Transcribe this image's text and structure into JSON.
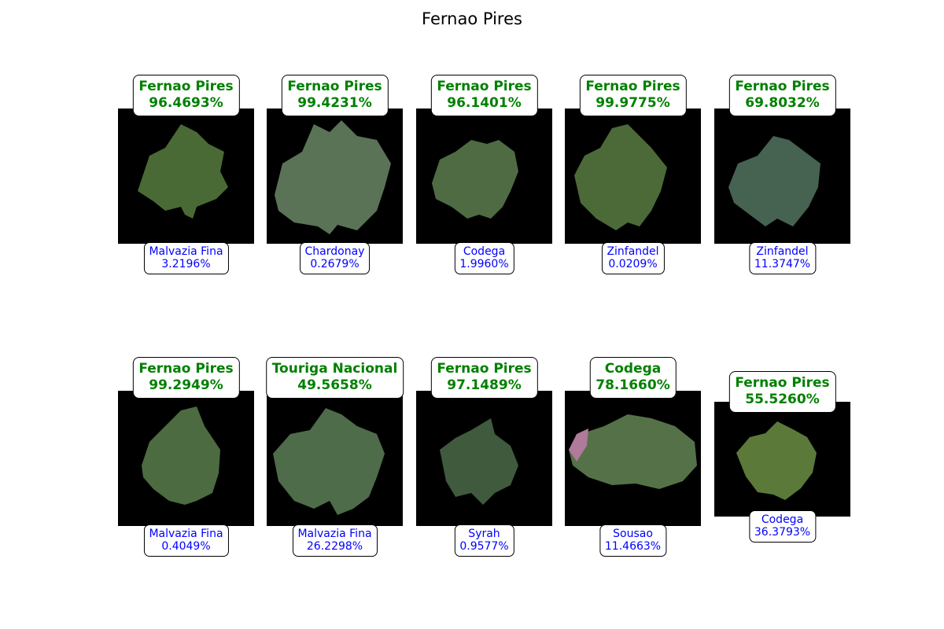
{
  "figure": {
    "title": "Fernao Pires"
  },
  "colors": {
    "prediction_text": "#008000",
    "alternative_text": "#0000ff",
    "image_background": "#000000"
  },
  "panels": [
    {
      "pred_label": "Fernao Pires",
      "pred_conf": "96.4693%",
      "alt_label": "Malvazia Fina",
      "alt_conf": "3.2196%"
    },
    {
      "pred_label": "Fernao Pires",
      "pred_conf": "99.4231%",
      "alt_label": "Chardonay",
      "alt_conf": "0.2679%"
    },
    {
      "pred_label": "Fernao Pires",
      "pred_conf": "96.1401%",
      "alt_label": "Codega",
      "alt_conf": "1.9960%"
    },
    {
      "pred_label": "Fernao Pires",
      "pred_conf": "99.9775%",
      "alt_label": "Zinfandel",
      "alt_conf": "0.0209%"
    },
    {
      "pred_label": "Fernao Pires",
      "pred_conf": "69.8032%",
      "alt_label": "Zinfandel",
      "alt_conf": "11.3747%"
    },
    {
      "pred_label": "Fernao Pires",
      "pred_conf": "99.2949%",
      "alt_label": "Malvazia Fina",
      "alt_conf": "0.4049%"
    },
    {
      "pred_label": "Touriga Nacional",
      "pred_conf": "49.5658%",
      "alt_label": "Malvazia Fina",
      "alt_conf": "26.2298%"
    },
    {
      "pred_label": "Fernao Pires",
      "pred_conf": "97.1489%",
      "alt_label": "Syrah",
      "alt_conf": "0.9577%"
    },
    {
      "pred_label": "Codega",
      "pred_conf": "78.1660%",
      "alt_label": "Sousao",
      "alt_conf": "11.4663%"
    },
    {
      "pred_label": "Fernao Pires",
      "pred_conf": "55.5260%",
      "alt_label": "Codega",
      "alt_conf": "36.3793%"
    }
  ]
}
